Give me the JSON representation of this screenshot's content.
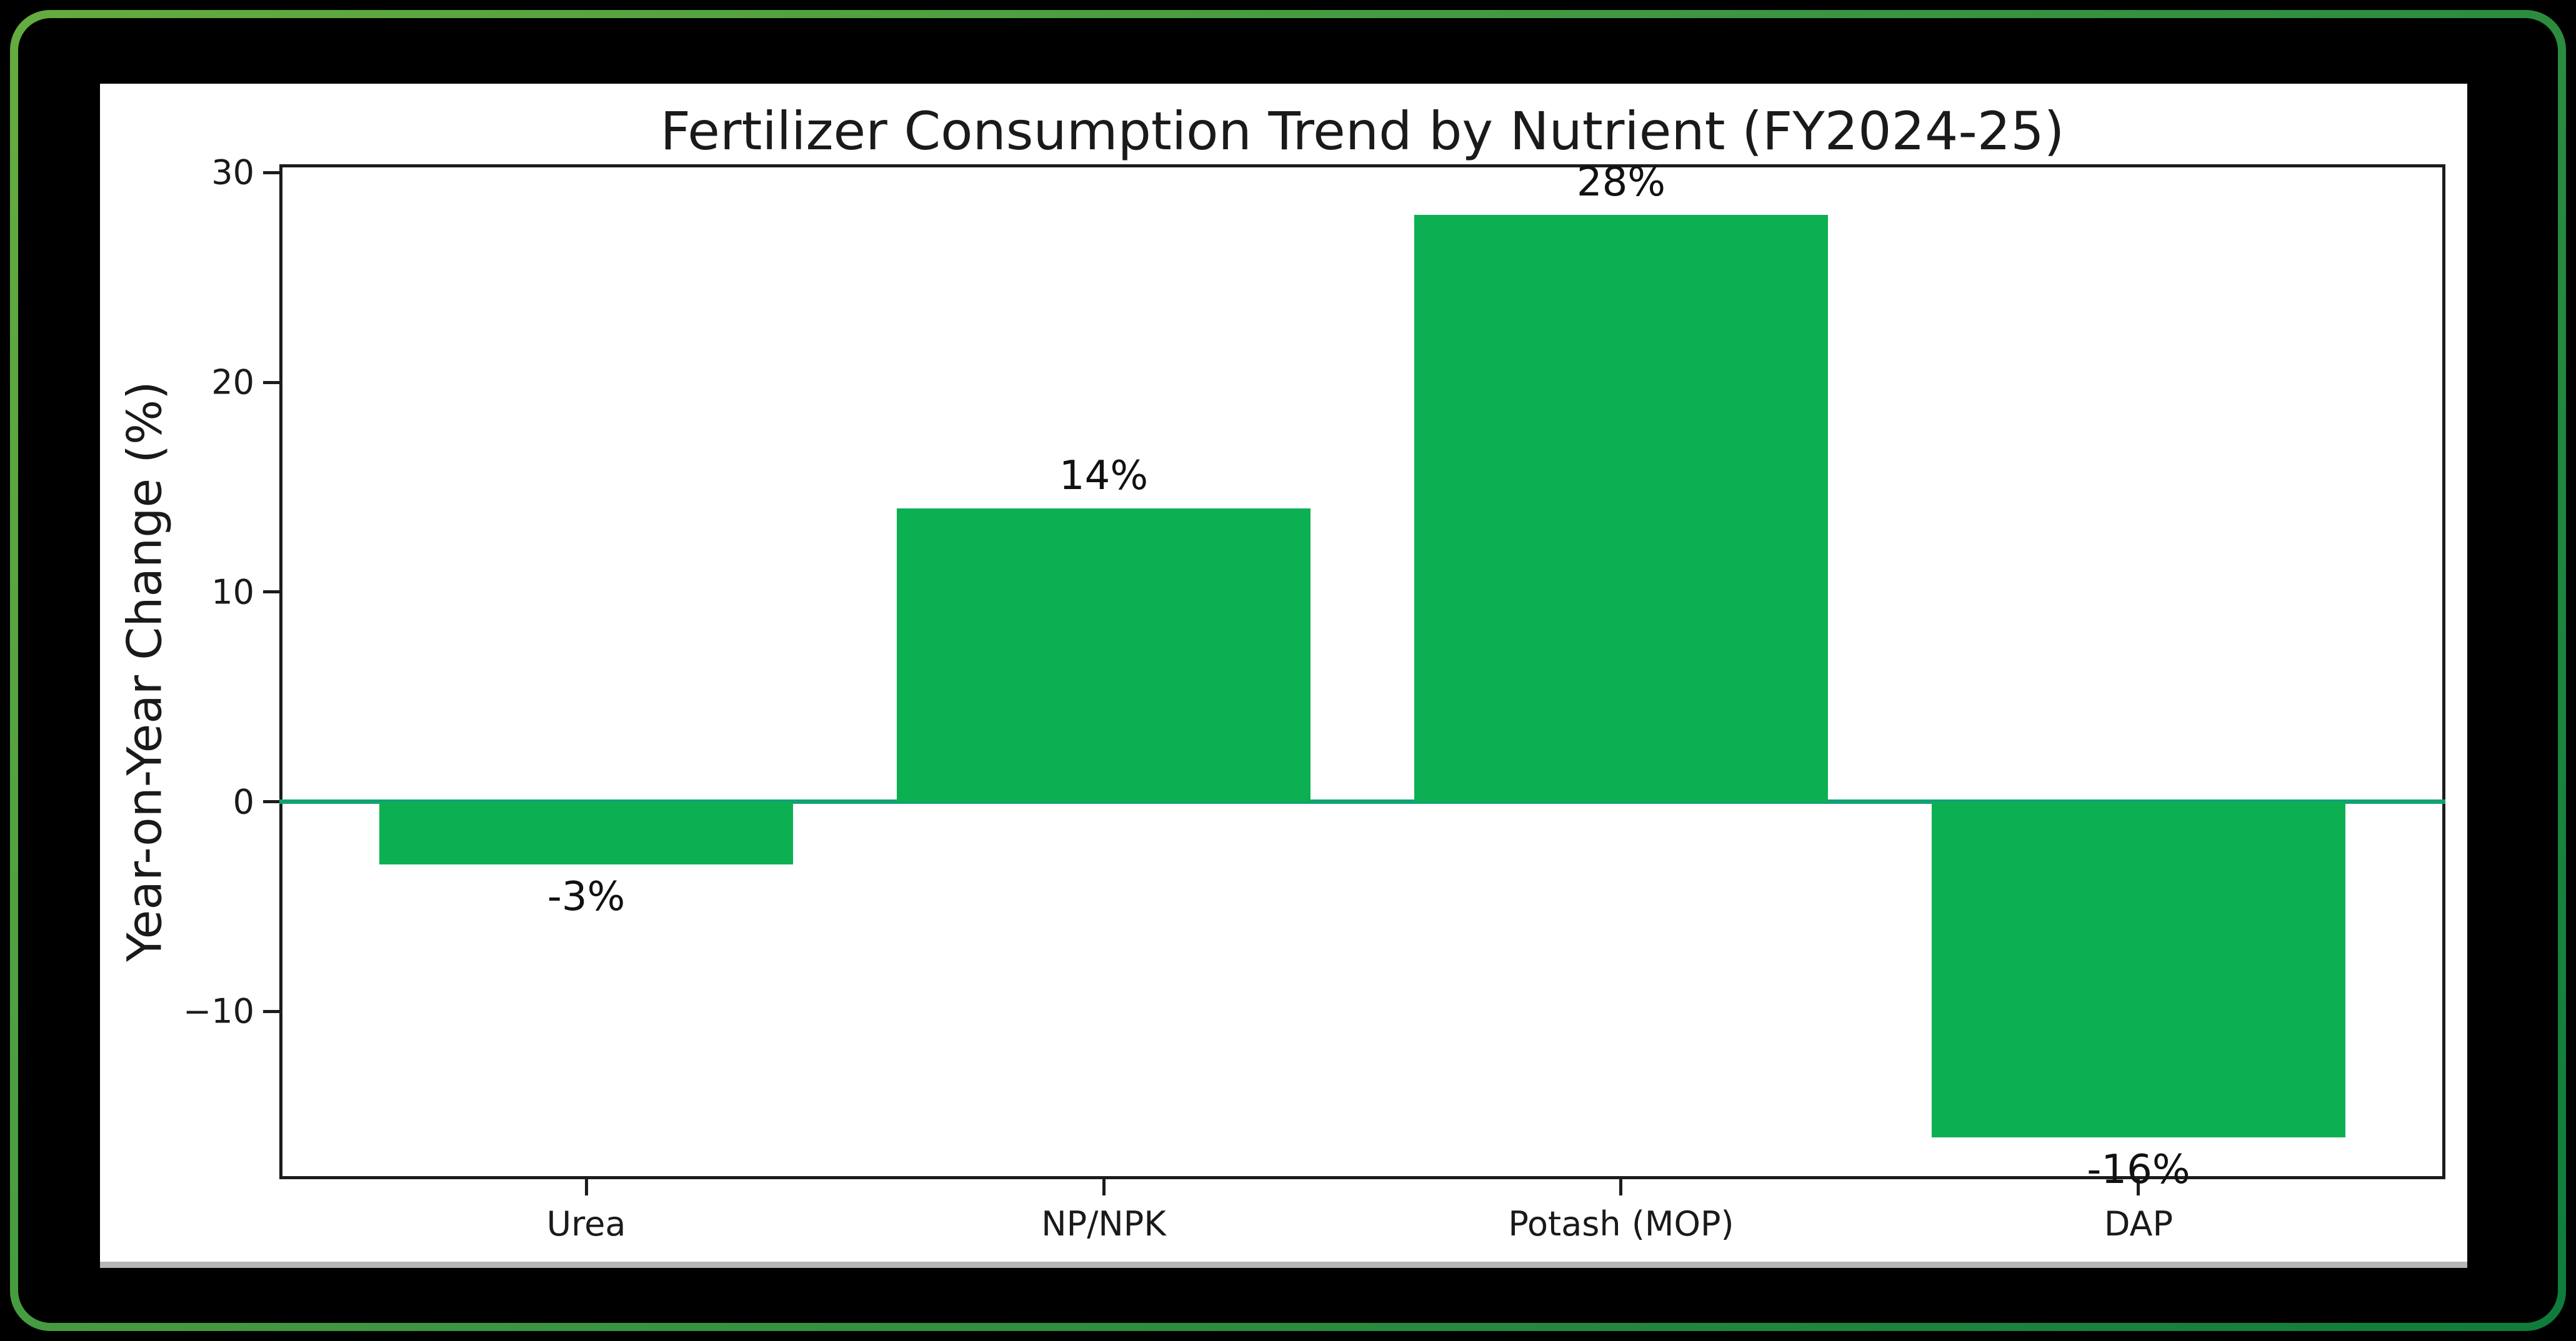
{
  "window": {
    "background_color": "#000000",
    "border_gradient_start": "#64ad3f",
    "border_gradient_end": "#0e7c3c",
    "panel_color": "#ffffff"
  },
  "chart_data": {
    "type": "bar",
    "title": "Fertilizer Consumption Trend by Nutrient (FY2024-25)",
    "ylabel": "Year-on-Year Change (%)",
    "xlabel": "",
    "categories": [
      "Urea",
      "NP/NPK",
      "Potash (MOP)",
      "DAP"
    ],
    "values": [
      -3,
      14,
      28,
      -16
    ],
    "bar_labels": [
      "-3%",
      "14%",
      "28%",
      "-16%"
    ],
    "ytick_values": [
      30,
      20,
      10,
      0,
      -10
    ],
    "ytick_labels": [
      "30",
      "20",
      "10",
      "0",
      "−10"
    ],
    "ylim": [
      -18.0,
      30.4
    ],
    "xlim": [
      -0.593,
      3.593
    ],
    "bar_width": 0.8,
    "grid": false,
    "legend": null,
    "baseline_value": 0,
    "bar_color": "#0cb053",
    "zero_line_color": "#12a173",
    "spine_color": "#1c1c1c",
    "text_color": "#1a1a1a"
  }
}
